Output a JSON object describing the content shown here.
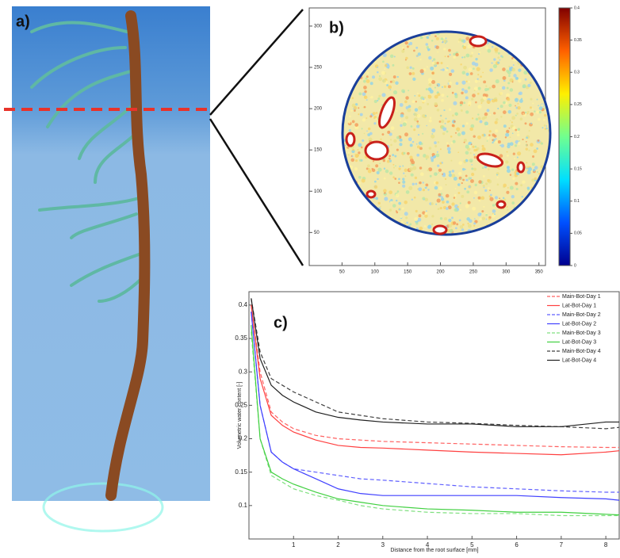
{
  "panel_a": {
    "label": "a)"
  },
  "chart_data": [
    {
      "type": "image",
      "label": "b)",
      "xlim": [
        0,
        360
      ],
      "ylim": [
        10,
        322
      ],
      "xticks": [
        50,
        100,
        150,
        200,
        250,
        300,
        350
      ],
      "yticks": [
        50,
        100,
        150,
        200,
        250,
        300
      ],
      "colorbar": {
        "clim": [
          0,
          0.4
        ],
        "ticks": [
          0,
          0.05,
          0.1,
          0.15,
          0.2,
          0.25,
          0.3,
          0.35,
          0.4
        ],
        "colors": [
          "#00008f",
          "#0050ff",
          "#00dfff",
          "#70ff8f",
          "#ffef00",
          "#ff6000",
          "#800000"
        ]
      }
    },
    {
      "type": "line",
      "label": "c)",
      "xlabel": "Distance from the root surface [mm]",
      "ylabel": "Volumetric water content [-]",
      "xlim": [
        0,
        8.3
      ],
      "ylim": [
        0.05,
        0.42
      ],
      "xticks": [
        1,
        2,
        3,
        4,
        5,
        6,
        7,
        8
      ],
      "yticks": [
        0.1,
        0.15,
        0.2,
        0.25,
        0.3,
        0.35,
        0.4
      ],
      "legend": "upper right",
      "x": [
        0.05,
        0.25,
        0.5,
        0.75,
        1,
        1.5,
        2,
        2.5,
        3,
        4,
        5,
        6,
        7,
        8,
        8.3
      ],
      "series": [
        {
          "name": "Main-Bot-Day 1",
          "color": "#ff6060",
          "dashed": true,
          "values": [
            0.4,
            0.3,
            0.24,
            0.225,
            0.215,
            0.205,
            0.2,
            0.198,
            0.196,
            0.194,
            0.192,
            0.19,
            0.188,
            0.187,
            0.187
          ]
        },
        {
          "name": "Lat-Bot-Day 1",
          "color": "#ff4040",
          "dashed": false,
          "values": [
            0.4,
            0.29,
            0.235,
            0.22,
            0.21,
            0.198,
            0.19,
            0.187,
            0.186,
            0.183,
            0.18,
            0.178,
            0.176,
            0.18,
            0.182
          ]
        },
        {
          "name": "Main-Bot-Day 2",
          "color": "#6060ff",
          "dashed": true,
          "values": [
            0.39,
            0.25,
            0.18,
            0.165,
            0.155,
            0.15,
            0.145,
            0.14,
            0.138,
            0.133,
            0.128,
            0.125,
            0.122,
            0.12,
            0.12
          ]
        },
        {
          "name": "Lat-Bot-Day 2",
          "color": "#4040ff",
          "dashed": false,
          "values": [
            0.39,
            0.25,
            0.18,
            0.165,
            0.155,
            0.14,
            0.125,
            0.118,
            0.115,
            0.115,
            0.115,
            0.115,
            0.112,
            0.11,
            0.108
          ]
        },
        {
          "name": "Main-Bot-Day 3",
          "color": "#80e080",
          "dashed": true,
          "values": [
            0.36,
            0.2,
            0.145,
            0.135,
            0.125,
            0.115,
            0.108,
            0.1,
            0.095,
            0.09,
            0.088,
            0.088,
            0.085,
            0.085,
            0.085
          ]
        },
        {
          "name": "Lat-Bot-Day 3",
          "color": "#40d040",
          "dashed": false,
          "values": [
            0.37,
            0.2,
            0.15,
            0.14,
            0.132,
            0.12,
            0.11,
            0.105,
            0.1,
            0.095,
            0.093,
            0.09,
            0.09,
            0.087,
            0.086
          ]
        },
        {
          "name": "Main-Bot-Day 4",
          "color": "#404040",
          "dashed": true,
          "values": [
            0.41,
            0.33,
            0.29,
            0.28,
            0.27,
            0.255,
            0.24,
            0.235,
            0.23,
            0.225,
            0.223,
            0.22,
            0.218,
            0.215,
            0.217
          ]
        },
        {
          "name": "Lat-Bot-Day 4",
          "color": "#202020",
          "dashed": false,
          "values": [
            0.41,
            0.32,
            0.28,
            0.265,
            0.255,
            0.24,
            0.232,
            0.228,
            0.225,
            0.222,
            0.222,
            0.218,
            0.218,
            0.225,
            0.225
          ]
        }
      ]
    }
  ]
}
